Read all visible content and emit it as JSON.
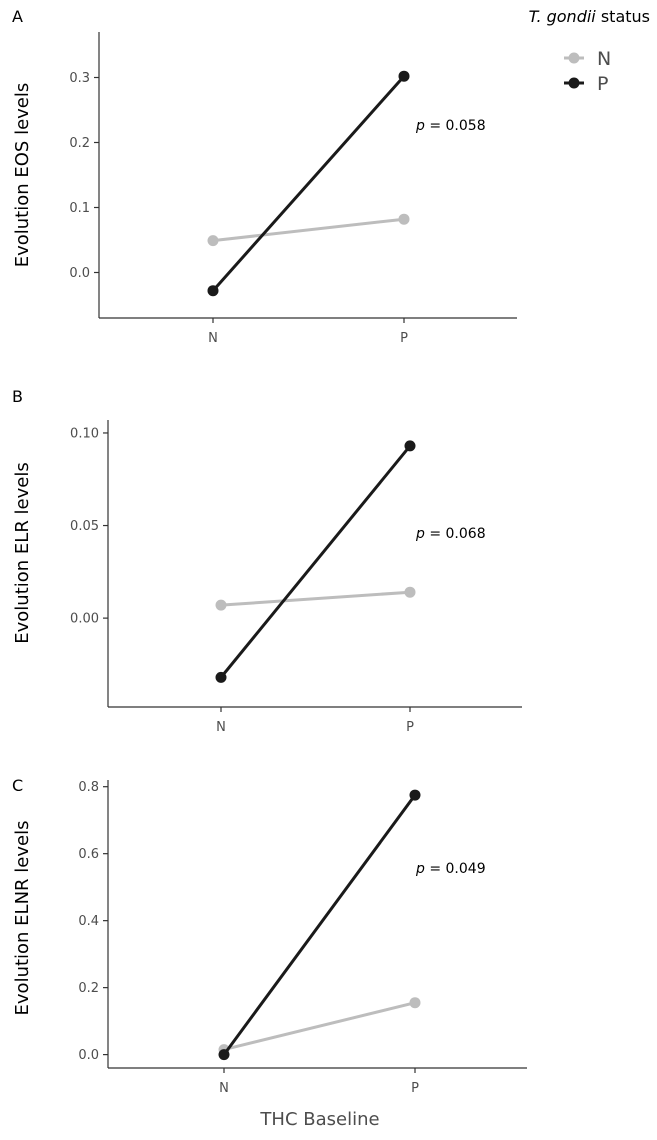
{
  "legend": {
    "title_italic": "T. gondii",
    "title_rest": " status",
    "entries": [
      {
        "label": "N",
        "color": "#bdbdbd"
      },
      {
        "label": "P",
        "color": "#1a1a1a"
      }
    ]
  },
  "xlabel": "THC Baseline",
  "chart_data": [
    {
      "type": "line",
      "panel": "A",
      "ylabel": "Evolution EOS levels",
      "categories": [
        "N",
        "P"
      ],
      "ylim": [
        -0.07,
        0.37
      ],
      "yticks": [
        0.0,
        0.1,
        0.2,
        0.3
      ],
      "ytick_labels": [
        "0.0",
        "0.1",
        "0.2",
        "0.3"
      ],
      "series": [
        {
          "name": "N",
          "values": [
            0.049,
            0.082
          ]
        },
        {
          "name": "P",
          "values": [
            -0.028,
            0.302
          ]
        }
      ],
      "annotation": {
        "p_symbol": "p",
        "p_text": " = 0.058"
      }
    },
    {
      "type": "line",
      "panel": "B",
      "ylabel": "Evolution ELR levels",
      "categories": [
        "N",
        "P"
      ],
      "ylim": [
        -0.048,
        0.107
      ],
      "yticks": [
        0.0,
        0.05,
        0.1
      ],
      "ytick_labels": [
        "0.00",
        "0.05",
        "0.10"
      ],
      "series": [
        {
          "name": "N",
          "values": [
            0.007,
            0.014
          ]
        },
        {
          "name": "P",
          "values": [
            -0.032,
            0.093
          ]
        }
      ],
      "annotation": {
        "p_symbol": "p",
        "p_text": " = 0.068"
      }
    },
    {
      "type": "line",
      "panel": "C",
      "ylabel": "Evolution ELNR levels",
      "categories": [
        "N",
        "P"
      ],
      "ylim": [
        -0.04,
        0.82
      ],
      "yticks": [
        0.0,
        0.2,
        0.4,
        0.6,
        0.8
      ],
      "ytick_labels": [
        "0.0",
        "0.2",
        "0.4",
        "0.6",
        "0.8"
      ],
      "series": [
        {
          "name": "N",
          "values": [
            0.015,
            0.155
          ]
        },
        {
          "name": "P",
          "values": [
            0.0,
            0.775
          ]
        }
      ],
      "annotation": {
        "p_symbol": "p",
        "p_text": " = 0.049"
      }
    }
  ]
}
